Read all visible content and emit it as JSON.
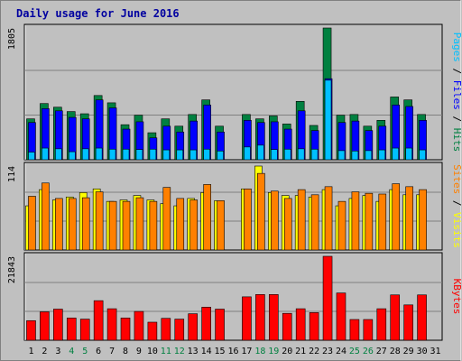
{
  "chart_data": {
    "type": "bar",
    "title": "Daily usage for June 2016",
    "days": [
      "1",
      "2",
      "3",
      "4",
      "5",
      "6",
      "7",
      "8",
      "9",
      "10",
      "11",
      "12",
      "13",
      "14",
      "15",
      "16",
      "17",
      "18",
      "19",
      "20",
      "21",
      "22",
      "23",
      "24",
      "25",
      "26",
      "27",
      "28",
      "29",
      "30",
      "31"
    ],
    "weekend_days": [
      "4",
      "5",
      "11",
      "12",
      "18",
      "19",
      "25",
      "26"
    ],
    "panels": [
      {
        "name": "hits-files-pages",
        "ymax_label": "1805",
        "ymax": 1805,
        "axis_labels": [
          "Pages",
          "Files",
          "Hits"
        ],
        "series": [
          {
            "name": "Hits",
            "color": "#008040",
            "values": [
              560,
              770,
              720,
              660,
              630,
              880,
              780,
              480,
              610,
              370,
              560,
              460,
              620,
              820,
              460,
              null,
              620,
              560,
              600,
              490,
              800,
              470,
              1805,
              610,
              620,
              460,
              540,
              860,
              820,
              620,
              null
            ]
          },
          {
            "name": "Files",
            "color": "#0000ff",
            "values": [
              510,
              700,
              670,
              580,
              560,
              820,
              710,
              420,
              520,
              300,
              460,
              380,
              530,
              750,
              380,
              null,
              540,
              510,
              520,
              420,
              670,
              400,
              1110,
              510,
              530,
              400,
              460,
              750,
              730,
              540,
              null
            ]
          },
          {
            "name": "Pages",
            "color": "#00c0ff",
            "values": [
              105,
              160,
              150,
              110,
              150,
              160,
              145,
              145,
              140,
              145,
              135,
              135,
              135,
              145,
              120,
              null,
              175,
              200,
              140,
              145,
              150,
              145,
              1090,
              125,
              120,
              125,
              135,
              160,
              160,
              135,
              null
            ]
          }
        ]
      },
      {
        "name": "visits-sites",
        "ymax_label": "114",
        "ymax": 114,
        "axis_labels": [
          "Sites",
          "Visits"
        ],
        "series": [
          {
            "name": "Visits",
            "color": "#ffff00",
            "values": [
              60,
              82,
              68,
              72,
              78,
              83,
              66,
              68,
              74,
              68,
              63,
              60,
              70,
              78,
              67,
              null,
              83,
              114,
              78,
              74,
              74,
              72,
              82,
              60,
              70,
              74,
              66,
              82,
              75,
              75,
              null
            ]
          },
          {
            "name": "Sites",
            "color": "#ff8000",
            "values": [
              73,
              91,
              70,
              70,
              71,
              79,
              66,
              66,
              71,
              66,
              85,
              70,
              68,
              89,
              67,
              null,
              83,
              104,
              80,
              70,
              82,
              75,
              86,
              66,
              79,
              77,
              76,
              90,
              86,
              82,
              null
            ]
          }
        ]
      },
      {
        "name": "kbytes",
        "ymax_label": "21843",
        "ymax": 21843,
        "axis_labels": [
          "KBytes"
        ],
        "series": [
          {
            "name": "KBytes",
            "color": "#ff0000",
            "values": [
              5100,
              7400,
              8100,
              5800,
              5500,
              10300,
              8200,
              5800,
              7500,
              4700,
              5700,
              5500,
              6900,
              8600,
              8100,
              null,
              11300,
              11900,
              11900,
              7000,
              8200,
              7200,
              21843,
              12300,
              5400,
              5400,
              8200,
              11800,
              9200,
              11800,
              null
            ]
          }
        ]
      }
    ]
  }
}
